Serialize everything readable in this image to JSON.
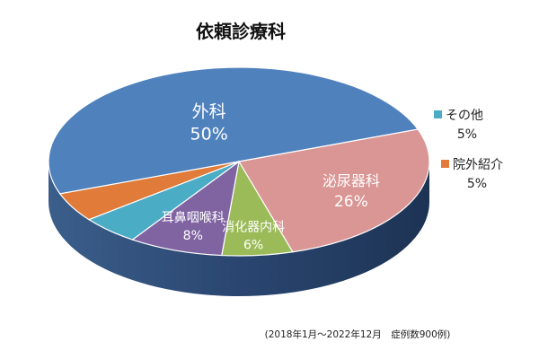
{
  "chart_data": {
    "type": "pie",
    "title": "依頼診療科",
    "slices": [
      {
        "name": "外科",
        "value": 50,
        "label": "50%",
        "color": "#4f81bd"
      },
      {
        "name": "泌尿器科",
        "value": 26,
        "label": "26%",
        "color": "#d99694"
      },
      {
        "name": "消化器内科",
        "value": 6,
        "label": "6%",
        "color": "#9bbb59"
      },
      {
        "name": "耳鼻咽喉科",
        "value": 8,
        "label": "8%",
        "color": "#8064a2"
      },
      {
        "name": "その他",
        "value": 5,
        "label": "5%",
        "color": "#4bacc6"
      },
      {
        "name": "院外紹介",
        "value": 5,
        "label": "5%",
        "color": "#e07b39"
      }
    ],
    "footnote": "(2018年1月～2022年12月　症例数900例)"
  }
}
